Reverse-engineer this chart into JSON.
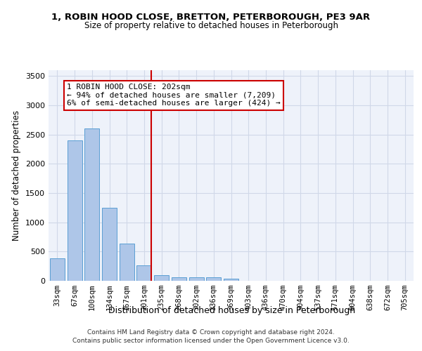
{
  "title_line1": "1, ROBIN HOOD CLOSE, BRETTON, PETERBOROUGH, PE3 9AR",
  "title_line2": "Size of property relative to detached houses in Peterborough",
  "xlabel": "Distribution of detached houses by size in Peterborough",
  "ylabel": "Number of detached properties",
  "categories": [
    "33sqm",
    "67sqm",
    "100sqm",
    "134sqm",
    "167sqm",
    "201sqm",
    "235sqm",
    "268sqm",
    "302sqm",
    "336sqm",
    "369sqm",
    "403sqm",
    "436sqm",
    "470sqm",
    "504sqm",
    "537sqm",
    "571sqm",
    "604sqm",
    "638sqm",
    "672sqm",
    "705sqm"
  ],
  "values": [
    390,
    2400,
    2600,
    1250,
    640,
    260,
    100,
    65,
    60,
    55,
    35,
    0,
    0,
    0,
    0,
    0,
    0,
    0,
    0,
    0,
    0
  ],
  "bar_color": "#aec6e8",
  "bar_edge_color": "#5a9fd4",
  "grid_color": "#d0d8e8",
  "background_color": "#eef2fa",
  "vline_color": "#cc0000",
  "annotation_line1": "1 ROBIN HOOD CLOSE: 202sqm",
  "annotation_line2": "← 94% of detached houses are smaller (7,209)",
  "annotation_line3": "6% of semi-detached houses are larger (424) →",
  "annotation_box_color": "#cc0000",
  "ylim": [
    0,
    3600
  ],
  "yticks": [
    0,
    500,
    1000,
    1500,
    2000,
    2500,
    3000,
    3500
  ],
  "footer_line1": "Contains HM Land Registry data © Crown copyright and database right 2024.",
  "footer_line2": "Contains public sector information licensed under the Open Government Licence v3.0."
}
